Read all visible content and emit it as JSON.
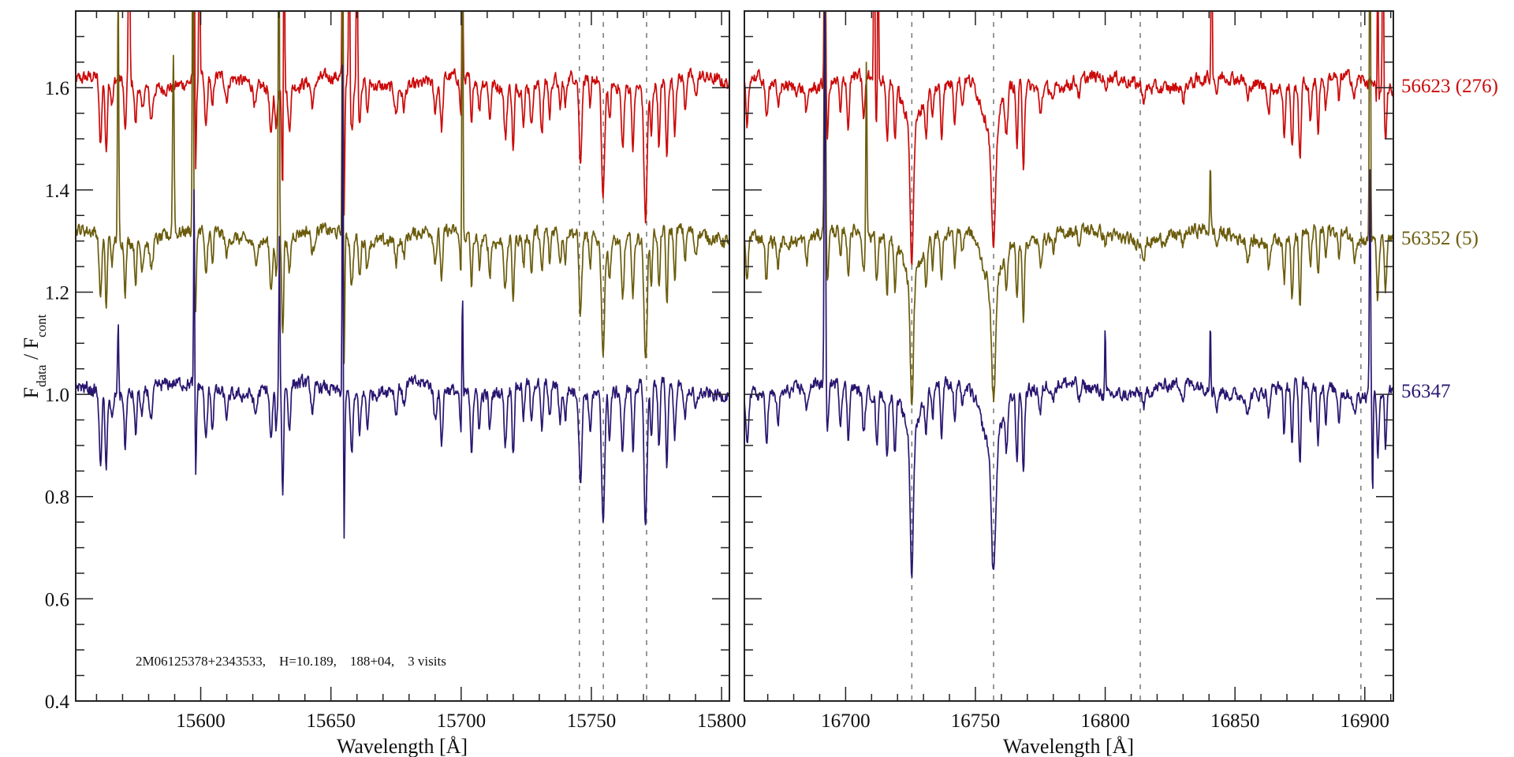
{
  "chart_data": {
    "type": "line",
    "title": "",
    "ylabel": {
      "main": "F",
      "sub1": "data",
      "sep": " / F",
      "sub2": "cont"
    },
    "xlabel": "Wavelength [Å]",
    "ylim": [
      0.4,
      1.75
    ],
    "yticks": [
      0.4,
      0.6,
      0.8,
      1.0,
      1.2,
      1.4,
      1.6
    ],
    "ytick_labels": [
      "0.4",
      "0.6",
      "0.8",
      "1.0",
      "1.2",
      "1.4",
      "1.6"
    ],
    "y_minor_step": 0.05,
    "x_minor_step": 10,
    "grid": false,
    "annotation": "2M06125378+2343533,    H=10.189,    188+04,    3 visits",
    "panels": [
      {
        "name": "left",
        "xlim": [
          15552,
          15803
        ],
        "xticks": [
          15600,
          15650,
          15700,
          15750,
          15800
        ],
        "xtick_labels": [
          "15600",
          "15650",
          "15700",
          "15750",
          "15800"
        ],
        "marker_lines": [
          15745.4,
          15754.6,
          15771.2
        ]
      },
      {
        "name": "right",
        "xlim": [
          16661,
          16911
        ],
        "xticks": [
          16700,
          16750,
          16800,
          16850,
          16900
        ],
        "xtick_labels": [
          "16700",
          "16750",
          "16800",
          "16850",
          "16900"
        ],
        "marker_lines": [
          16725.5,
          16757,
          16813.5,
          16898.5
        ]
      }
    ],
    "series": [
      {
        "name": "56623 (276)",
        "color": "#cc0a0a",
        "offset": 0.6,
        "depth_scale": 1.0,
        "continuum": 1.01,
        "spikes": [
          [
            15572.5,
            0.5,
            0.25
          ],
          [
            15597.5,
            0.5,
            0.2
          ],
          [
            15599.5,
            0.5,
            0.2
          ],
          [
            15632,
            0.6,
            0.2
          ],
          [
            15654.5,
            0.5,
            0.2
          ],
          [
            15657,
            0.4,
            0.2
          ],
          [
            15660,
            0.5,
            0.2
          ],
          [
            15700.5,
            0.4,
            0.2
          ],
          [
            16692,
            0.5,
            0.25
          ],
          [
            16711,
            0.5,
            0.2
          ],
          [
            16712.5,
            0.4,
            0.2
          ],
          [
            16841,
            0.4,
            0.2
          ],
          [
            16905,
            0.4,
            0.2
          ],
          [
            16907,
            0.5,
            0.2
          ]
        ]
      },
      {
        "name": "56352 (5)",
        "color": "#6b5c0c",
        "offset": 0.3,
        "depth_scale": 0.95,
        "continuum": 1.01,
        "spikes": [
          [
            15568.3,
            0.5,
            0.22
          ],
          [
            15589.5,
            0.35,
            0.3
          ],
          [
            15597,
            0.8,
            0.2
          ],
          [
            15630,
            0.8,
            0.2
          ],
          [
            15654.5,
            0.8,
            0.2
          ],
          [
            15700.5,
            0.8,
            0.2
          ],
          [
            16692,
            0.8,
            0.25
          ],
          [
            16708,
            0.35,
            0.22
          ],
          [
            16840.5,
            0.12,
            0.22
          ],
          [
            16902,
            0.8,
            0.22
          ]
        ]
      },
      {
        "name": "56347",
        "color": "#2a1670",
        "offset": 0.0,
        "depth_scale": 1.05,
        "continuum": 1.01,
        "spikes": [
          [
            15568.3,
            0.14,
            0.22
          ],
          [
            15597.5,
            0.45,
            0.2
          ],
          [
            15630.2,
            0.3,
            0.2
          ],
          [
            15654.5,
            0.8,
            0.18
          ],
          [
            15700.5,
            0.25,
            0.2
          ],
          [
            16692,
            0.8,
            0.25
          ],
          [
            16800,
            0.14,
            0.2
          ],
          [
            16840.5,
            0.14,
            0.2
          ],
          [
            16902,
            0.45,
            0.22
          ],
          [
            16903,
            -0.2,
            0.2
          ]
        ]
      }
    ],
    "absorption_lines": [
      [
        15561.5,
        0.13,
        0.5
      ],
      [
        15563.7,
        0.15,
        0.4
      ],
      [
        15566,
        0.05,
        0.5
      ],
      [
        15571,
        0.1,
        0.4
      ],
      [
        15575,
        0.08,
        0.4
      ],
      [
        15577.5,
        0.05,
        0.5
      ],
      [
        15581,
        0.06,
        0.6
      ],
      [
        15598,
        0.18,
        0.35
      ],
      [
        15602,
        0.1,
        0.5
      ],
      [
        15604.5,
        0.07,
        0.4
      ],
      [
        15610,
        0.04,
        0.6
      ],
      [
        15621,
        0.04,
        0.6
      ],
      [
        15627,
        0.1,
        0.5
      ],
      [
        15629,
        0.08,
        0.4
      ],
      [
        15631.5,
        0.2,
        0.35
      ],
      [
        15634,
        0.08,
        0.5
      ],
      [
        15643,
        0.05,
        0.6
      ],
      [
        15655,
        0.28,
        0.3
      ],
      [
        15658,
        0.1,
        0.5
      ],
      [
        15661,
        0.08,
        0.4
      ],
      [
        15664,
        0.06,
        0.4
      ],
      [
        15675,
        0.05,
        0.5
      ],
      [
        15678,
        0.04,
        0.5
      ],
      [
        15690,
        0.06,
        0.6
      ],
      [
        15692.5,
        0.1,
        0.5
      ],
      [
        15700,
        0.08,
        0.5
      ],
      [
        15704,
        0.1,
        0.4
      ],
      [
        15707,
        0.06,
        0.4
      ],
      [
        15711,
        0.07,
        0.4
      ],
      [
        15717,
        0.1,
        0.5
      ],
      [
        15720,
        0.12,
        0.4
      ],
      [
        15724,
        0.06,
        0.4
      ],
      [
        15727,
        0.08,
        0.4
      ],
      [
        15731,
        0.09,
        0.5
      ],
      [
        15734,
        0.07,
        0.4
      ],
      [
        15738,
        0.06,
        0.5
      ],
      [
        15740,
        0.06,
        0.4
      ],
      [
        15745.8,
        0.16,
        0.55
      ],
      [
        15749.5,
        0.07,
        0.4
      ],
      [
        15754.5,
        0.23,
        0.6
      ],
      [
        15757,
        0.08,
        0.4
      ],
      [
        15762,
        0.12,
        0.5
      ],
      [
        15766,
        0.12,
        0.4
      ],
      [
        15770.8,
        0.26,
        0.6
      ],
      [
        15773,
        0.1,
        0.4
      ],
      [
        15776,
        0.12,
        0.4
      ],
      [
        15779,
        0.15,
        0.4
      ],
      [
        15782,
        0.1,
        0.4
      ],
      [
        15786,
        0.06,
        0.4
      ],
      [
        15790,
        0.04,
        0.5
      ],
      [
        16662,
        0.1,
        0.5
      ],
      [
        16669.5,
        0.08,
        0.5
      ],
      [
        16674,
        0.05,
        0.5
      ],
      [
        16685,
        0.05,
        0.5
      ],
      [
        16693,
        0.1,
        0.4
      ],
      [
        16698,
        0.07,
        0.4
      ],
      [
        16701,
        0.1,
        0.4
      ],
      [
        16707,
        0.08,
        0.5
      ],
      [
        16712,
        0.1,
        0.4
      ],
      [
        16716,
        0.12,
        0.4
      ],
      [
        16719,
        0.1,
        0.4
      ],
      [
        16725.5,
        0.26,
        0.6
      ],
      [
        16725.5,
        0.08,
        3
      ],
      [
        16731,
        0.08,
        0.4
      ],
      [
        16733.5,
        0.06,
        0.4
      ],
      [
        16737,
        0.1,
        0.4
      ],
      [
        16742,
        0.07,
        0.4
      ],
      [
        16745,
        0.05,
        0.4
      ],
      [
        16757,
        0.24,
        0.8
      ],
      [
        16756,
        0.1,
        3.5
      ],
      [
        16762,
        0.08,
        0.5
      ],
      [
        16766,
        0.12,
        0.4
      ],
      [
        16768.5,
        0.15,
        0.4
      ],
      [
        16775,
        0.05,
        0.5
      ],
      [
        16780,
        0.03,
        0.5
      ],
      [
        16790,
        0.03,
        0.5
      ],
      [
        16800,
        0.02,
        0.5
      ],
      [
        16815,
        0.03,
        0.5
      ],
      [
        16830,
        0.03,
        0.5
      ],
      [
        16843,
        0.03,
        0.5
      ],
      [
        16855,
        0.04,
        0.5
      ],
      [
        16863,
        0.05,
        0.4
      ],
      [
        16869,
        0.09,
        0.4
      ],
      [
        16872,
        0.12,
        0.4
      ],
      [
        16875,
        0.15,
        0.4
      ],
      [
        16879,
        0.08,
        0.4
      ],
      [
        16882,
        0.1,
        0.4
      ],
      [
        16885,
        0.06,
        0.4
      ],
      [
        16890,
        0.05,
        0.4
      ],
      [
        16896,
        0.04,
        0.5
      ],
      [
        16905,
        0.12,
        0.4
      ],
      [
        16908,
        0.1,
        0.4
      ]
    ]
  }
}
